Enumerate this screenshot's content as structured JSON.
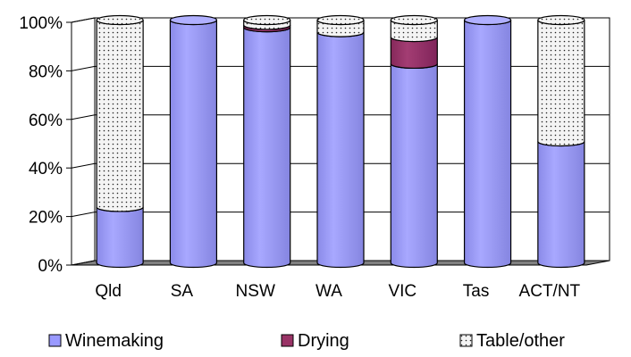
{
  "chart_data": {
    "type": "bar",
    "stacked": true,
    "percent": true,
    "categories": [
      "Qld",
      "SA",
      "NSW",
      "WA",
      "VIC",
      "Tas",
      "ACT/NT"
    ],
    "series": [
      {
        "name": "Winemaking",
        "values": [
          23,
          100,
          97,
          95,
          82,
          100,
          50
        ],
        "color": "#9999ff"
      },
      {
        "name": "Drying",
        "values": [
          0,
          0,
          1,
          0,
          11,
          0,
          0
        ],
        "color": "#993366"
      },
      {
        "name": "Table/other",
        "values": [
          77,
          0,
          2,
          5,
          7,
          0,
          50
        ],
        "color": "#f4f4f4"
      }
    ],
    "yticks": [
      "0%",
      "20%",
      "40%",
      "60%",
      "80%",
      "100%"
    ],
    "ylim": [
      0,
      100
    ],
    "legend_position": "bottom",
    "grid": true
  }
}
